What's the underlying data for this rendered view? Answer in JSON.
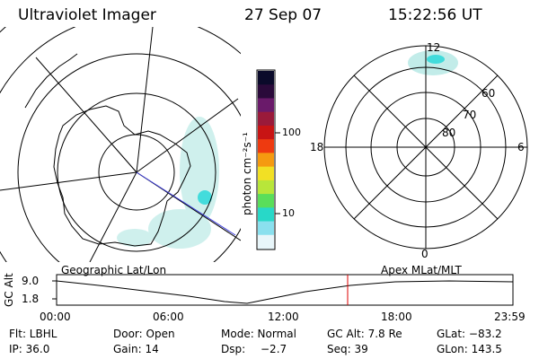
{
  "header": {
    "title": "Ultraviolet Imager",
    "date": "27 Sep 07",
    "time": "15:22:56 UT"
  },
  "colorbar": {
    "unit_label": "photon cm⁻²s⁻¹",
    "ticks": [
      "100",
      "10"
    ],
    "colors": [
      "#0a0a2a",
      "#2a0a3a",
      "#6a1a6a",
      "#9a1a3a",
      "#c81414",
      "#ee3a10",
      "#f59a10",
      "#f2e024",
      "#b8e63a",
      "#5ade5a",
      "#28d8c8",
      "#8ae0ee",
      "#e8f6fa"
    ]
  },
  "geo_map": {
    "label": "Geographic Lat/Lon"
  },
  "polar_map": {
    "label": "Apex MLat/MLT",
    "mlt_labels": [
      "12",
      "18",
      "6",
      "0"
    ],
    "lat_labels": [
      "60",
      "70",
      "80"
    ]
  },
  "altitude_plot": {
    "ylabel": "GC Alt",
    "yticks": [
      "9.0",
      "1.8"
    ],
    "xticks": [
      "00:00",
      "06:00",
      "12:00",
      "18:00",
      "23:59"
    ],
    "current_time_marker": "15:22:56",
    "marker_color": "#dd0000"
  },
  "info": {
    "row1": [
      "Flt: LBHL",
      "Door: Open",
      "Mode: Normal",
      "GC Alt: 7.8 Re",
      "GLat: −83.2"
    ],
    "row2": [
      "IP: 36.0",
      "Gain: 14",
      "Dsp:",
      "−2.7",
      "Seq: 39",
      "GLon: 143.5"
    ]
  }
}
